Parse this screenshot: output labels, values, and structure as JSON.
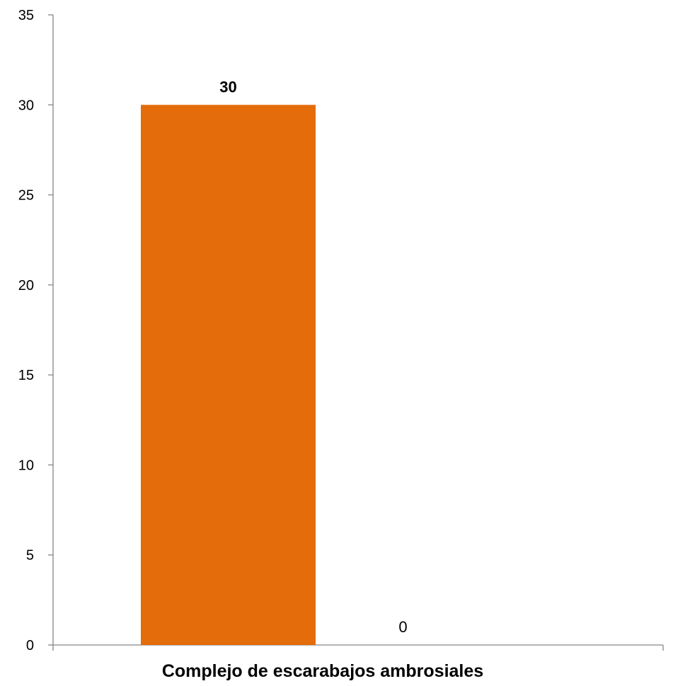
{
  "chart_data": {
    "type": "bar",
    "categories": [
      "Complejo de escarabajos ambrosiales"
    ],
    "series": [
      {
        "values": [
          30
        ],
        "color": "#E46C0A",
        "label_bold": true
      },
      {
        "values": [
          0
        ],
        "color": "#E46C0A",
        "label_bold": false
      }
    ],
    "data_labels": [
      "30",
      "0"
    ],
    "title": "",
    "xlabel": "Complejo de escarabajos ambrosiales",
    "ylabel": "",
    "ylim": [
      0,
      35
    ],
    "yticks": [
      0,
      5,
      10,
      15,
      20,
      25,
      30,
      35
    ],
    "ytick_labels": [
      "0",
      "5",
      "10",
      "15",
      "20",
      "25",
      "30",
      "35"
    ],
    "grid": false,
    "legend": "none"
  }
}
